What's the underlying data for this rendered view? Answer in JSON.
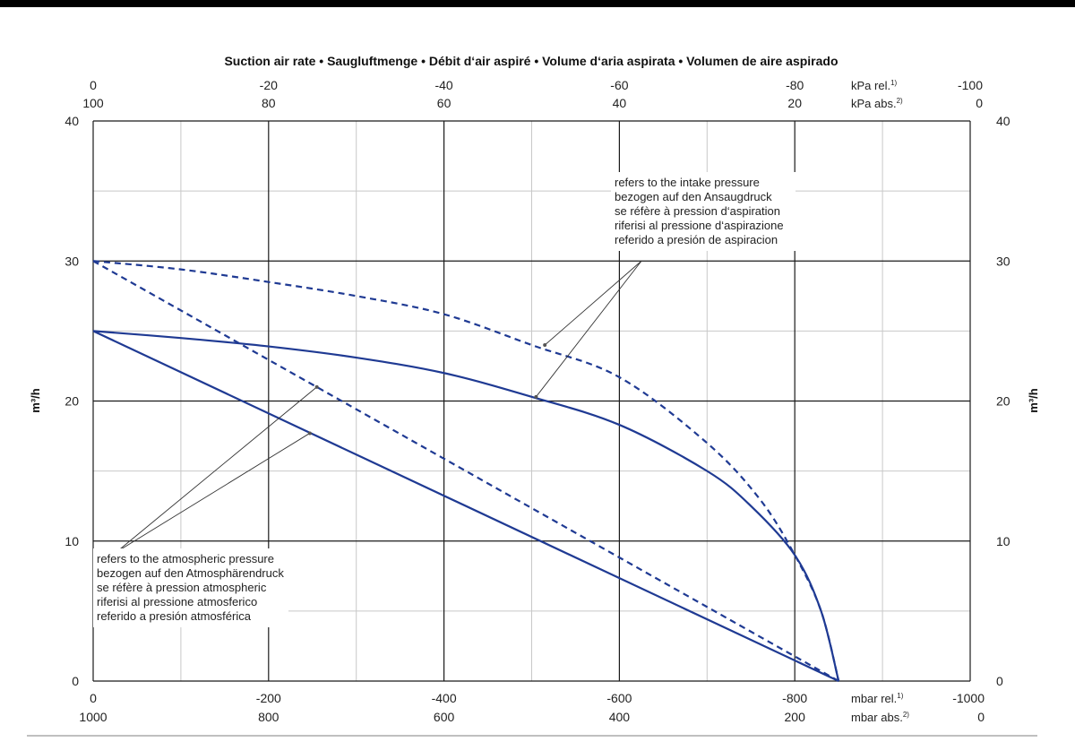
{
  "chart_data": {
    "type": "line",
    "title": "Suction air rate  •  Saugluftmenge  •  Débit d‘air aspiré  •  Volume d‘aria aspirata  •  Volumen de aire aspirado",
    "ylabel": "m³/h",
    "ylim": [
      0,
      40
    ],
    "y_ticks": [
      "0",
      "10",
      "20",
      "30",
      "40"
    ],
    "xlim": [
      0,
      -1000
    ],
    "x_bottom": {
      "rel_ticks": [
        "0",
        "-200",
        "-400",
        "-600",
        "-800",
        "-1000"
      ],
      "abs_ticks": [
        "1000",
        "800",
        "600",
        "400",
        "200",
        "0"
      ],
      "rel_unit": "mbar rel.",
      "rel_sup": "1)",
      "abs_unit": "mbar abs.",
      "abs_sup": "2)"
    },
    "x_top": {
      "rel_ticks": [
        "0",
        "-20",
        "-40",
        "-60",
        "-80",
        "-100"
      ],
      "abs_ticks": [
        "100",
        "80",
        "60",
        "40",
        "20",
        "0"
      ],
      "rel_unit": "kPa rel.",
      "rel_sup": "1)",
      "abs_unit": "kPa abs.",
      "abs_sup": "2)"
    },
    "grid": true,
    "series": [
      {
        "style": "solid",
        "color": "#1f3a93",
        "x": [
          0,
          -100,
          -200,
          -300,
          -400,
          -500,
          -600,
          -700,
          -750,
          -800,
          -830,
          -850
        ],
        "y": [
          25,
          24.5,
          23.9,
          23.1,
          22.0,
          20.3,
          18.3,
          15.0,
          12.5,
          9.0,
          5.0,
          0
        ]
      },
      {
        "style": "dashed",
        "color": "#1f3a93",
        "x": [
          0,
          -100,
          -200,
          -300,
          -400,
          -500,
          -600,
          -700,
          -760,
          -800,
          -830,
          -850
        ],
        "y": [
          30,
          29.4,
          28.5,
          27.5,
          26.2,
          24.0,
          21.7,
          17.0,
          13.0,
          9.0,
          5.0,
          0
        ]
      },
      {
        "style": "solid",
        "color": "#1f3a93",
        "x": [
          0,
          -850
        ],
        "y": [
          25,
          0
        ]
      },
      {
        "style": "dashed",
        "color": "#1f3a93",
        "x": [
          0,
          -850
        ],
        "y": [
          30,
          0
        ]
      }
    ],
    "annotations": {
      "intake": [
        "refers to the intake pressure",
        "bezogen auf den Ansaugdruck",
        "se réfère à pression d‘aspiration",
        "riferisi al pressione d‘aspirazione",
        "referido a presión de aspiracion"
      ],
      "atmospheric": [
        "refers to the atmospheric pressure",
        "bezogen auf den Atmosphärendruck",
        "se réfère à pression atmospheric",
        "riferisi al pressione atmosferico",
        "referido a presión atmosférica"
      ]
    },
    "colors": {
      "curve": "#1f3a93",
      "grid_major": "#1a1a1a",
      "grid_minor": "#c8c8c8"
    }
  }
}
